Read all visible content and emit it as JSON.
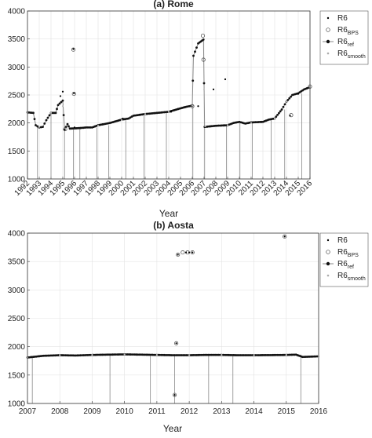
{
  "chart_data": [
    {
      "type": "scatter",
      "title": "(a) Rome",
      "xlabel": "Year",
      "ylabel": "",
      "xlim": [
        1992,
        2016
      ],
      "ylim": [
        1000,
        4000
      ],
      "yticks": [
        1000,
        1500,
        2000,
        2500,
        3000,
        3500,
        4000
      ],
      "xticks": [
        "1992",
        "1993",
        "1994",
        "1995",
        "1996",
        "1997",
        "1998",
        "1999",
        "2000",
        "2001",
        "2002",
        "2003",
        "2004",
        "2005",
        "2006",
        "2007",
        "2008",
        "2009",
        "2010",
        "2011",
        "2012",
        "2013",
        "2014",
        "2015",
        "2016"
      ],
      "grid": true,
      "legend_position": "top-right",
      "legend": [
        {
          "main": "R6",
          "sub": ""
        },
        {
          "main": "R6",
          "sub": "BPS"
        },
        {
          "main": "R6",
          "sub": "ref"
        },
        {
          "main": "R6",
          "sub": "smooth"
        }
      ],
      "series": [
        {
          "name": "R6",
          "points": [
            [
              1994.8,
              2480
            ],
            [
              1995.0,
              2560
            ],
            [
              1995.9,
              3320
            ],
            [
              1995.95,
              2530
            ],
            [
              1996.0,
              1920
            ],
            [
              2000.1,
              2080
            ],
            [
              2004.2,
              2200
            ],
            [
              2006.5,
              2300
            ],
            [
              2007.8,
              2600
            ],
            [
              2008.8,
              2780
            ],
            [
              2014.3,
              2130
            ],
            [
              2015.0,
              2520
            ]
          ]
        },
        {
          "name": "R6BPS",
          "points": [
            [
              1995.2,
              1890
            ],
            [
              1995.9,
              3310
            ],
            [
              1995.95,
              2520
            ],
            [
              2006.0,
              2300
            ],
            [
              2006.95,
              3130
            ],
            [
              2006.9,
              3560
            ],
            [
              2014.4,
              2140
            ],
            [
              2016.0,
              2650
            ]
          ]
        },
        {
          "name": "R6ref",
          "points": [
            [
              1992.0,
              2190
            ],
            [
              1992.5,
              2180
            ],
            [
              1992.7,
              1960
            ],
            [
              1993.0,
              1920
            ],
            [
              1993.3,
              1930
            ],
            [
              1993.6,
              2050
            ],
            [
              1994.0,
              2180
            ],
            [
              1994.4,
              2180
            ],
            [
              1994.6,
              2320
            ],
            [
              1995.0,
              2400
            ],
            [
              1995.15,
              1880
            ],
            [
              1995.4,
              1980
            ],
            [
              1995.6,
              1900
            ],
            [
              1996.5,
              1910
            ],
            [
              1997.0,
              1920
            ],
            [
              1997.5,
              1920
            ],
            [
              1998.0,
              1960
            ],
            [
              1999.0,
              2000
            ],
            [
              2000.0,
              2060
            ],
            [
              2000.6,
              2080
            ],
            [
              2001.0,
              2130
            ],
            [
              2002.0,
              2160
            ],
            [
              2003.0,
              2180
            ],
            [
              2004.0,
              2200
            ],
            [
              2004.8,
              2250
            ],
            [
              2005.5,
              2290
            ],
            [
              2006.0,
              2310
            ],
            [
              2006.1,
              3200
            ],
            [
              2006.5,
              3420
            ],
            [
              2006.95,
              3490
            ],
            [
              2007.05,
              1930
            ],
            [
              2008.0,
              1950
            ],
            [
              2009.0,
              1960
            ],
            [
              2009.5,
              2000
            ],
            [
              2010.0,
              2020
            ],
            [
              2010.5,
              1990
            ],
            [
              2011.0,
              2010
            ],
            [
              2012.0,
              2020
            ],
            [
              2012.5,
              2060
            ],
            [
              2013.0,
              2080
            ],
            [
              2013.6,
              2240
            ],
            [
              2014.0,
              2380
            ],
            [
              2014.5,
              2500
            ],
            [
              2015.0,
              2530
            ],
            [
              2015.5,
              2600
            ],
            [
              2016.0,
              2640
            ]
          ]
        },
        {
          "name": "R6smooth",
          "points": [
            [
              1992.0,
              2190
            ],
            [
              1993.0,
              1930
            ],
            [
              1994.0,
              2180
            ],
            [
              1995.0,
              2300
            ],
            [
              1996.0,
              1920
            ],
            [
              1998.0,
              1950
            ],
            [
              2000.0,
              2050
            ],
            [
              2002.0,
              2160
            ],
            [
              2004.0,
              2200
            ],
            [
              2006.0,
              2310
            ],
            [
              2007.0,
              2600
            ],
            [
              2007.1,
              1940
            ],
            [
              2009.0,
              1960
            ],
            [
              2011.0,
              2000
            ],
            [
              2013.0,
              2080
            ],
            [
              2014.0,
              2380
            ],
            [
              2016.0,
              2640
            ]
          ]
        }
      ]
    },
    {
      "type": "scatter",
      "title": "(b) Aosta",
      "xlabel": "Year",
      "ylabel": "",
      "xlim": [
        2007,
        2016
      ],
      "ylim": [
        1000,
        4000
      ],
      "yticks": [
        1000,
        1500,
        2000,
        2500,
        3000,
        3500,
        4000
      ],
      "xticks": [
        "2007",
        "2008",
        "2009",
        "2010",
        "2011",
        "2012",
        "2013",
        "2014",
        "2015",
        "2016"
      ],
      "grid": true,
      "legend_position": "top-right",
      "legend": [
        {
          "main": "R6",
          "sub": ""
        },
        {
          "main": "R6",
          "sub": "BPS"
        },
        {
          "main": "R6",
          "sub": "ref"
        },
        {
          "main": "R6",
          "sub": "smooth"
        }
      ],
      "series": [
        {
          "name": "R6",
          "points": [
            [
              2011.55,
              1150
            ],
            [
              2011.6,
              2060
            ],
            [
              2011.65,
              3620
            ],
            [
              2011.9,
              3660
            ],
            [
              2012.0,
              3660
            ],
            [
              2012.1,
              3660
            ],
            [
              2014.95,
              3940
            ]
          ]
        },
        {
          "name": "R6BPS",
          "points": [
            [
              2011.55,
              1150
            ],
            [
              2011.6,
              2060
            ],
            [
              2011.65,
              3620
            ],
            [
              2011.8,
              3660
            ],
            [
              2011.95,
              3660
            ],
            [
              2012.1,
              3660
            ],
            [
              2014.95,
              3940
            ]
          ]
        },
        {
          "name": "R6ref",
          "points": [
            [
              2007.0,
              1810
            ],
            [
              2007.5,
              1840
            ],
            [
              2008.0,
              1850
            ],
            [
              2008.5,
              1845
            ],
            [
              2009.0,
              1855
            ],
            [
              2009.5,
              1860
            ],
            [
              2010.0,
              1865
            ],
            [
              2010.5,
              1860
            ],
            [
              2011.0,
              1855
            ],
            [
              2011.5,
              1850
            ],
            [
              2012.0,
              1850
            ],
            [
              2012.5,
              1855
            ],
            [
              2013.0,
              1855
            ],
            [
              2013.5,
              1850
            ],
            [
              2014.0,
              1850
            ],
            [
              2014.5,
              1852
            ],
            [
              2015.0,
              1855
            ],
            [
              2015.3,
              1860
            ],
            [
              2015.5,
              1820
            ],
            [
              2016.0,
              1830
            ]
          ]
        },
        {
          "name": "R6smooth",
          "points": [
            [
              2007.0,
              1810
            ],
            [
              2008.0,
              1850
            ],
            [
              2009.0,
              1855
            ],
            [
              2010.0,
              1865
            ],
            [
              2011.0,
              1855
            ],
            [
              2012.0,
              1850
            ],
            [
              2013.0,
              1855
            ],
            [
              2014.0,
              1850
            ],
            [
              2015.0,
              1855
            ],
            [
              2016.0,
              1830
            ]
          ]
        }
      ],
      "breakpoints": [
        2007.15,
        2009.55,
        2010.8,
        2011.55,
        2012.6,
        2013.35,
        2015.45
      ]
    }
  ],
  "rome_breakpoints": [
    1992.85,
    1994.0,
    1995.15,
    1995.9,
    1996.45,
    1997.9,
    1998.9,
    2000.35,
    2001.9,
    2003.8,
    2006.05,
    2007.05,
    2008.9,
    2010.05,
    2011.1,
    2012.7,
    2013.85,
    2015.3
  ]
}
